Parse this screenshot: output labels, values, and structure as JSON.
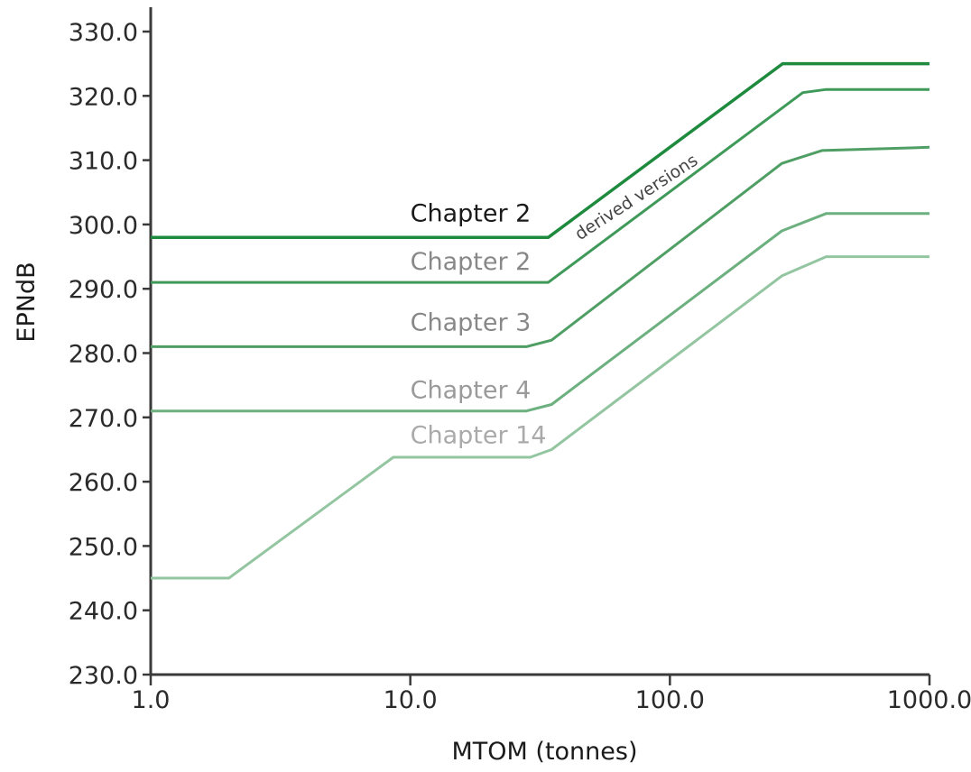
{
  "chart_data": {
    "type": "line",
    "title": "",
    "xlabel": "MTOM (tonnes)",
    "ylabel": "EPNdB",
    "xscale": "log",
    "xlim": [
      1.0,
      1000.0
    ],
    "ylim": [
      230.0,
      330.0
    ],
    "xticks": [
      "1.0",
      "10.0",
      "100.0",
      "1000.0"
    ],
    "yticks": [
      "230.0",
      "240.0",
      "250.0",
      "260.0",
      "270.0",
      "280.0",
      "290.0",
      "300.0",
      "310.0",
      "320.0",
      "330.0"
    ],
    "grid": false,
    "legend": "none",
    "series": [
      {
        "name": "Chapter 2",
        "color": "#1e8a3e",
        "points": [
          [
            1.0,
            298.0
          ],
          [
            34.0,
            298.0
          ],
          [
            272.0,
            325.0
          ],
          [
            1000.0,
            325.0
          ]
        ]
      },
      {
        "name": "Chapter 2",
        "color": "#3f9a5a",
        "points": [
          [
            1.0,
            291.0
          ],
          [
            34.0,
            291.0
          ],
          [
            325.0,
            320.5
          ],
          [
            400.0,
            321.0
          ],
          [
            1000.0,
            321.0
          ]
        ]
      },
      {
        "name": "Chapter 3",
        "color": "#4f9f65",
        "points": [
          [
            1.0,
            281.0
          ],
          [
            28.0,
            281.0
          ],
          [
            35.0,
            282.0
          ],
          [
            270.0,
            309.5
          ],
          [
            385.0,
            311.5
          ],
          [
            1000.0,
            312.0
          ]
        ]
      },
      {
        "name": "Chapter 4",
        "color": "#6cb07f",
        "points": [
          [
            1.0,
            271.0
          ],
          [
            28.0,
            271.0
          ],
          [
            35.0,
            272.0
          ],
          [
            270.0,
            299.0
          ],
          [
            400.0,
            301.7
          ],
          [
            1000.0,
            301.7
          ]
        ]
      },
      {
        "name": "Chapter 14",
        "color": "#93c6a0",
        "points": [
          [
            1.0,
            245.0
          ],
          [
            2.0,
            245.0
          ],
          [
            8.6,
            263.8
          ],
          [
            29.0,
            263.8
          ],
          [
            35.0,
            265.0
          ],
          [
            270.0,
            292.0
          ],
          [
            400.0,
            295.0
          ],
          [
            1000.0,
            295.0
          ]
        ]
      }
    ],
    "annotations": [
      {
        "text": "derived versions"
      }
    ]
  }
}
